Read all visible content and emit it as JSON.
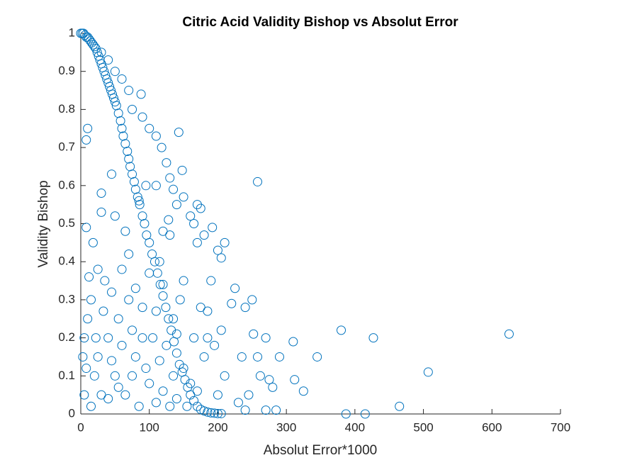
{
  "chart_data": {
    "type": "scatter",
    "title": "Citric Acid Validity Bishop vs Absolut Error",
    "x_label": "Absolut Error*1000",
    "y_label": "Validity Bishop",
    "xlim": [
      0,
      700
    ],
    "ylim": [
      0,
      1
    ],
    "xticks": [
      0,
      100,
      200,
      300,
      400,
      500,
      600,
      700
    ],
    "yticks": [
      0,
      0.1,
      0.2,
      0.3,
      0.4,
      0.5,
      0.6,
      0.7,
      0.8,
      0.9,
      1
    ],
    "series": [
      {
        "color": "#0072bd",
        "x": [
          0,
          2,
          4,
          6,
          8,
          10,
          12,
          14,
          16,
          18,
          20,
          22,
          24,
          26,
          28,
          30,
          32,
          34,
          36,
          38,
          40,
          42,
          44,
          46,
          48,
          50,
          52,
          55,
          58,
          60,
          62,
          65,
          68,
          70,
          72,
          75,
          78,
          80,
          83,
          86,
          90,
          93,
          96,
          100,
          104,
          108,
          112,
          116,
          120,
          124,
          128,
          132,
          136,
          140,
          144,
          148,
          152,
          156,
          160,
          165,
          170,
          175,
          180,
          185,
          190,
          195,
          200,
          205,
          30,
          40,
          50,
          60,
          70,
          88,
          75,
          90,
          100,
          110,
          118,
          125,
          130,
          143,
          148,
          135,
          150,
          140,
          110,
          95,
          85,
          120,
          128,
          170,
          175,
          180,
          192,
          200,
          210,
          205,
          160,
          165,
          258,
          45,
          10,
          8,
          30,
          30,
          8,
          50,
          65,
          130,
          5,
          10,
          15,
          20,
          25,
          30,
          35,
          40,
          45,
          50,
          55,
          60,
          65,
          70,
          75,
          80,
          85,
          90,
          95,
          100,
          105,
          110,
          115,
          120,
          125,
          130,
          135,
          140,
          145,
          150,
          155,
          160,
          165,
          170,
          175,
          180,
          185,
          190,
          195,
          200,
          205,
          210,
          220,
          225,
          230,
          235,
          240,
          245,
          250,
          252,
          258,
          262,
          270,
          275,
          280,
          290,
          310,
          312,
          325,
          345,
          380,
          387,
          415,
          427,
          465,
          507,
          625,
          15,
          25,
          12,
          5,
          3,
          18,
          40,
          60,
          70,
          80,
          100,
          120,
          110,
          90,
          140,
          115,
          135,
          45,
          55,
          75,
          33,
          22,
          8,
          150,
          170,
          185,
          240,
          270,
          285
        ],
        "y": [
          1,
          1,
          1,
          0.995,
          0.99,
          0.99,
          0.985,
          0.98,
          0.975,
          0.97,
          0.965,
          0.96,
          0.95,
          0.94,
          0.93,
          0.92,
          0.91,
          0.9,
          0.89,
          0.88,
          0.87,
          0.86,
          0.85,
          0.84,
          0.83,
          0.82,
          0.81,
          0.79,
          0.77,
          0.75,
          0.73,
          0.71,
          0.69,
          0.67,
          0.65,
          0.63,
          0.61,
          0.59,
          0.57,
          0.55,
          0.52,
          0.5,
          0.47,
          0.45,
          0.42,
          0.4,
          0.37,
          0.34,
          0.31,
          0.28,
          0.25,
          0.22,
          0.19,
          0.16,
          0.13,
          0.11,
          0.09,
          0.07,
          0.05,
          0.035,
          0.02,
          0.012,
          0.008,
          0.005,
          0.003,
          0.002,
          0.001,
          0.001,
          0.95,
          0.93,
          0.9,
          0.88,
          0.85,
          0.84,
          0.8,
          0.78,
          0.75,
          0.73,
          0.7,
          0.66,
          0.62,
          0.74,
          0.64,
          0.59,
          0.57,
          0.55,
          0.6,
          0.6,
          0.56,
          0.48,
          0.51,
          0.55,
          0.54,
          0.47,
          0.49,
          0.43,
          0.45,
          0.41,
          0.52,
          0.5,
          0.61,
          0.63,
          0.75,
          0.72,
          0.58,
          0.53,
          0.49,
          0.52,
          0.48,
          0.47,
          0.2,
          0.25,
          0.3,
          0.1,
          0.15,
          0.05,
          0.35,
          0.2,
          0.32,
          0.1,
          0.25,
          0.18,
          0.05,
          0.3,
          0.22,
          0.15,
          0.02,
          0.28,
          0.12,
          0.08,
          0.2,
          0.03,
          0.14,
          0.06,
          0.18,
          0.02,
          0.25,
          0.04,
          0.3,
          0.12,
          0.02,
          0.08,
          0.2,
          0.06,
          0.28,
          0.15,
          0.27,
          0.35,
          0.18,
          0.05,
          0.22,
          0.1,
          0.29,
          0.33,
          0.03,
          0.15,
          0.28,
          0.05,
          0.3,
          0.21,
          0.15,
          0.1,
          0.2,
          0.09,
          0.07,
          0.15,
          0.19,
          0.09,
          0.06,
          0.15,
          0.22,
          0,
          0,
          0.2,
          0.02,
          0.11,
          0.21,
          0.02,
          0.38,
          0.36,
          0.05,
          0.15,
          0.45,
          0.04,
          0.38,
          0.42,
          0.33,
          0.37,
          0.34,
          0.27,
          0.2,
          0.21,
          0.4,
          0.1,
          0.14,
          0.07,
          0.1,
          0.27,
          0.2,
          0.12,
          0.35,
          0.45,
          0.2,
          0.01,
          0.01,
          0.01
        ]
      }
    ]
  }
}
